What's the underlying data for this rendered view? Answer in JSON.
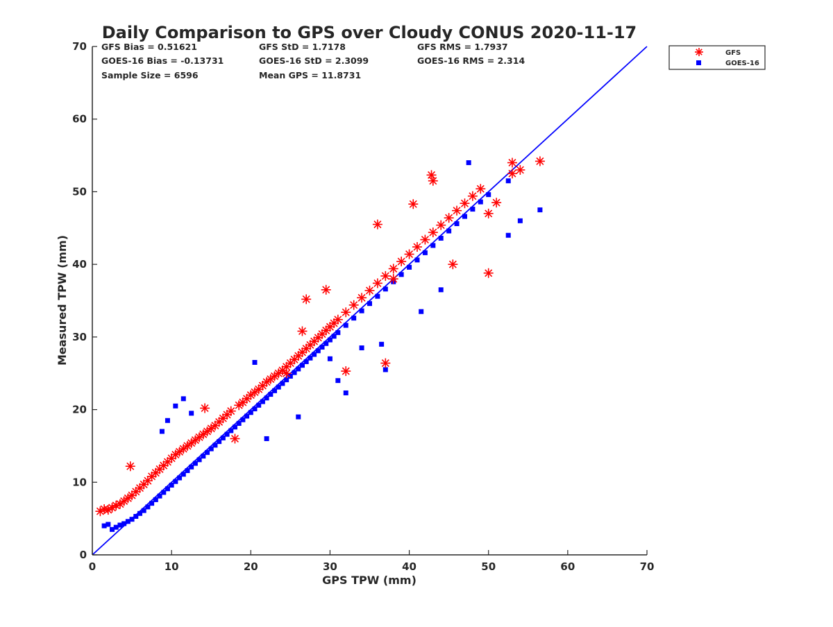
{
  "chart_data": {
    "type": "scatter",
    "title": "Daily Comparison to GPS over Cloudy CONUS 2020-11-17",
    "xlabel": "GPS TPW (mm)",
    "ylabel": "Measured TPW (mm)",
    "xlim": [
      0,
      70
    ],
    "ylim": [
      0,
      70
    ],
    "xticks": [
      "0",
      "10",
      "20",
      "30",
      "40",
      "50",
      "60",
      "70"
    ],
    "yticks": [
      "0",
      "10",
      "20",
      "30",
      "40",
      "50",
      "60",
      "70"
    ],
    "grid": false,
    "legend_position": "outside-top-right",
    "stats": [
      [
        "GFS Bias = 0.51621",
        "GFS StD = 1.7178",
        "GFS RMS = 1.7937"
      ],
      [
        "GOES-16 Bias = -0.13731",
        "GOES-16 StD = 2.3099",
        "GOES-16 RMS = 2.314"
      ],
      [
        "Sample Size = 6596",
        "Mean GPS = 11.8731",
        ""
      ]
    ],
    "reference_line": {
      "x": [
        0,
        70
      ],
      "y": [
        0,
        70
      ],
      "color": "#0000ff"
    },
    "series": [
      {
        "name": "GFS",
        "marker": "asterisk",
        "color": "#ff0000",
        "x": [
          1.0,
          1.5,
          2.0,
          2.5,
          3.0,
          3.5,
          4.0,
          4.5,
          5.0,
          5.5,
          6.0,
          6.5,
          7.0,
          7.5,
          8.0,
          8.5,
          9.0,
          9.5,
          10.0,
          10.5,
          11.0,
          11.5,
          12.0,
          12.5,
          13.0,
          13.5,
          14.0,
          14.5,
          15.0,
          15.5,
          16.0,
          16.5,
          17.0,
          17.5,
          18.0,
          18.5,
          19.0,
          19.5,
          20.0,
          20.5,
          21.0,
          21.5,
          22.0,
          22.5,
          23.0,
          23.5,
          24.0,
          24.5,
          25.0,
          25.5,
          26.0,
          26.5,
          27.0,
          27.5,
          28.0,
          28.5,
          29.0,
          29.5,
          30.0,
          30.5,
          31.0,
          32.0,
          33.0,
          34.0,
          35.0,
          36.0,
          37.0,
          38.0,
          39.0,
          40.0,
          41.0,
          42.0,
          43.0,
          44.0,
          45.0,
          46.0,
          47.0,
          48.0,
          49.0,
          50.0,
          51.0,
          53.0,
          54.0,
          56.5,
          4.8,
          14.2,
          26.5,
          37.0,
          32.0,
          42.8,
          53.0,
          43.0,
          38.0,
          50.0,
          27.0,
          29.5,
          36.0,
          40.5,
          45.5,
          24.5
        ],
        "y": [
          6.0,
          6.3,
          6.2,
          6.5,
          6.8,
          7.0,
          7.4,
          7.8,
          8.2,
          8.7,
          9.2,
          9.7,
          10.2,
          10.8,
          11.3,
          11.8,
          12.3,
          12.8,
          13.3,
          13.8,
          14.2,
          14.6,
          15.0,
          15.4,
          15.8,
          16.2,
          16.6,
          17.0,
          17.4,
          17.8,
          18.3,
          18.8,
          19.3,
          19.8,
          16.0,
          20.6,
          21.0,
          21.5,
          22.0,
          22.4,
          22.8,
          23.3,
          23.8,
          24.2,
          24.6,
          25.0,
          25.4,
          25.9,
          26.4,
          26.9,
          27.4,
          27.9,
          28.4,
          28.9,
          29.4,
          29.9,
          30.4,
          30.9,
          31.4,
          31.9,
          32.4,
          33.4,
          34.4,
          35.4,
          36.4,
          37.4,
          38.4,
          39.4,
          40.4,
          41.4,
          42.4,
          43.4,
          44.4,
          45.4,
          46.4,
          47.4,
          48.4,
          49.4,
          50.4,
          47.0,
          48.5,
          54.0,
          53.0,
          54.2,
          12.2,
          20.2,
          30.8,
          26.4,
          25.3,
          52.3,
          52.5,
          51.5,
          38.0,
          38.8,
          35.2,
          36.5,
          45.5,
          48.3,
          40.0,
          25.0
        ]
      },
      {
        "name": "GOES-16",
        "marker": "square",
        "color": "#0000ff",
        "x": [
          1.5,
          2.0,
          2.5,
          3.0,
          3.5,
          4.0,
          4.5,
          5.0,
          5.5,
          6.0,
          6.5,
          7.0,
          7.5,
          8.0,
          8.5,
          9.0,
          9.5,
          10.0,
          10.5,
          11.0,
          11.5,
          12.0,
          12.5,
          13.0,
          13.5,
          14.0,
          14.5,
          15.0,
          15.5,
          16.0,
          16.5,
          17.0,
          17.5,
          18.0,
          18.5,
          19.0,
          19.5,
          20.0,
          20.5,
          21.0,
          21.5,
          22.0,
          22.5,
          23.0,
          23.5,
          24.0,
          24.5,
          25.0,
          25.5,
          26.0,
          26.5,
          27.0,
          27.5,
          28.0,
          28.5,
          29.0,
          29.5,
          30.0,
          30.5,
          31.0,
          32.0,
          33.0,
          34.0,
          35.0,
          36.0,
          37.0,
          38.0,
          39.0,
          40.0,
          41.0,
          42.0,
          43.0,
          44.0,
          45.0,
          46.0,
          47.0,
          48.0,
          49.0,
          50.0,
          52.5,
          54.0,
          56.5,
          10.5,
          9.5,
          8.8,
          11.5,
          12.5,
          20.5,
          31.0,
          32.0,
          37.0,
          47.5,
          44.0,
          41.5,
          36.5,
          52.5,
          34.0,
          26.0,
          22.0,
          30.0
        ],
        "y": [
          4.0,
          4.2,
          3.5,
          3.8,
          4.1,
          4.3,
          4.6,
          4.9,
          5.3,
          5.7,
          6.1,
          6.6,
          7.1,
          7.6,
          8.1,
          8.6,
          9.1,
          9.6,
          10.1,
          10.6,
          11.1,
          11.6,
          12.1,
          12.6,
          13.1,
          13.6,
          14.1,
          14.6,
          15.1,
          15.6,
          16.1,
          16.6,
          17.1,
          17.6,
          18.1,
          18.6,
          19.1,
          19.6,
          20.1,
          20.6,
          21.1,
          21.6,
          22.1,
          22.6,
          23.1,
          23.6,
          24.1,
          24.6,
          25.1,
          25.6,
          26.1,
          26.6,
          27.1,
          27.6,
          28.1,
          28.6,
          29.1,
          29.6,
          30.1,
          30.6,
          31.6,
          32.6,
          33.6,
          34.6,
          35.6,
          36.6,
          37.6,
          38.6,
          39.6,
          40.6,
          41.6,
          42.6,
          43.6,
          44.6,
          45.6,
          46.6,
          47.6,
          48.6,
          49.6,
          44.0,
          46.0,
          47.5,
          20.5,
          18.5,
          17.0,
          21.5,
          19.5,
          26.5,
          24.0,
          22.3,
          25.5,
          54.0,
          36.5,
          33.5,
          29.0,
          51.5,
          28.5,
          19.0,
          16.0,
          27.0
        ]
      }
    ]
  }
}
